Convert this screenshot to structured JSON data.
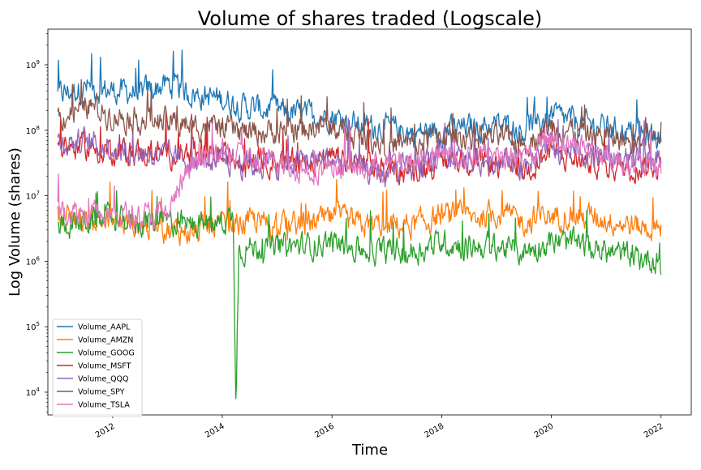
{
  "chart_data": {
    "type": "line",
    "title": "Volume of shares traded (Logscale)",
    "xlabel": "Time",
    "ylabel": "Log Volume (shares)",
    "yscale": "log",
    "xlim": [
      2010.82,
      2022.55
    ],
    "ylim": [
      4500,
      3500000000
    ],
    "x_ticks": [
      2012,
      2014,
      2016,
      2018,
      2020,
      2022
    ],
    "y_ticks": [
      {
        "value": 10000,
        "base": "10",
        "exp": "4"
      },
      {
        "value": 100000,
        "base": "10",
        "exp": "5"
      },
      {
        "value": 1000000,
        "base": "10",
        "exp": "6"
      },
      {
        "value": 10000000,
        "base": "10",
        "exp": "7"
      },
      {
        "value": 100000000,
        "base": "10",
        "exp": "8"
      },
      {
        "value": 1000000000,
        "base": "10",
        "exp": "9"
      }
    ],
    "legend_position": "lower-left",
    "grid": false,
    "series": [
      {
        "name": "Volume_AAPL",
        "color": "#1f77b4",
        "x": [
          2011.0,
          2011.5,
          2012.0,
          2012.5,
          2013.0,
          2013.5,
          2014.0,
          2014.5,
          2015.0,
          2015.5,
          2016.0,
          2016.5,
          2017.0,
          2017.5,
          2018.0,
          2018.5,
          2019.0,
          2019.5,
          2020.0,
          2020.5,
          2021.0,
          2021.5,
          2022.0
        ],
        "y": [
          350000000,
          450000000,
          400000000,
          380000000,
          500000000,
          350000000,
          300000000,
          220000000,
          200000000,
          170000000,
          170000000,
          120000000,
          110000000,
          90000000,
          100000000,
          110000000,
          120000000,
          100000000,
          170000000,
          130000000,
          110000000,
          90000000,
          80000000
        ]
      },
      {
        "name": "Volume_AMZN",
        "color": "#ff7f0e",
        "x": [
          2011.0,
          2011.5,
          2012.0,
          2012.5,
          2013.0,
          2013.5,
          2014.0,
          2014.5,
          2015.0,
          2015.5,
          2016.0,
          2016.5,
          2017.0,
          2017.5,
          2018.0,
          2018.5,
          2019.0,
          2019.5,
          2020.0,
          2020.5,
          2021.0,
          2021.5,
          2022.0
        ],
        "y": [
          5000000,
          4500000,
          4000000,
          3500000,
          3000000,
          2800000,
          3500000,
          4000000,
          3500000,
          3500000,
          4500000,
          3500000,
          3500000,
          3500000,
          5000000,
          4500000,
          5500000,
          4000000,
          5000000,
          5000000,
          4500000,
          3500000,
          3000000
        ]
      },
      {
        "name": "Volume_GOOG",
        "color": "#2ca02c",
        "x": [
          2011.0,
          2011.5,
          2012.0,
          2012.5,
          2013.0,
          2013.5,
          2014.0,
          2014.2,
          2014.25,
          2014.3,
          2014.5,
          2015.0,
          2015.5,
          2016.0,
          2016.5,
          2017.0,
          2017.5,
          2018.0,
          2018.5,
          2019.0,
          2019.5,
          2020.0,
          2020.5,
          2021.0,
          2021.5,
          2022.0
        ],
        "y": [
          3500000,
          4000000,
          4500000,
          4000000,
          4000000,
          3500000,
          4000000,
          5000000,
          8000,
          1500000,
          1600000,
          1700000,
          1700000,
          2000000,
          1500000,
          1400000,
          1400000,
          2000000,
          1700000,
          1700000,
          1400000,
          2000000,
          1800000,
          1400000,
          1200000,
          1000000
        ]
      },
      {
        "name": "Volume_MSFT",
        "color": "#d62728",
        "x": [
          2011.0,
          2011.5,
          2012.0,
          2012.5,
          2013.0,
          2013.5,
          2014.0,
          2014.5,
          2015.0,
          2015.5,
          2016.0,
          2016.5,
          2017.0,
          2017.5,
          2018.0,
          2018.5,
          2019.0,
          2019.5,
          2020.0,
          2020.5,
          2021.0,
          2021.5,
          2022.0
        ],
        "y": [
          60000000,
          55000000,
          50000000,
          45000000,
          45000000,
          45000000,
          40000000,
          35000000,
          35000000,
          35000000,
          35000000,
          30000000,
          25000000,
          25000000,
          35000000,
          35000000,
          30000000,
          25000000,
          45000000,
          35000000,
          30000000,
          27000000,
          30000000
        ]
      },
      {
        "name": "Volume_QQQ",
        "color": "#9467bd",
        "x": [
          2011.0,
          2011.5,
          2012.0,
          2012.5,
          2013.0,
          2013.5,
          2014.0,
          2014.5,
          2015.0,
          2015.5,
          2016.0,
          2016.5,
          2017.0,
          2017.5,
          2018.0,
          2018.5,
          2019.0,
          2019.5,
          2020.0,
          2020.5,
          2021.0,
          2021.5,
          2022.0
        ],
        "y": [
          70000000,
          65000000,
          55000000,
          45000000,
          40000000,
          35000000,
          35000000,
          30000000,
          30000000,
          35000000,
          35000000,
          25000000,
          22000000,
          25000000,
          35000000,
          35000000,
          35000000,
          30000000,
          50000000,
          45000000,
          40000000,
          35000000,
          40000000
        ]
      },
      {
        "name": "Volume_SPY",
        "color": "#8c564b",
        "x": [
          2011.0,
          2011.5,
          2012.0,
          2012.5,
          2013.0,
          2013.5,
          2014.0,
          2014.5,
          2015.0,
          2015.5,
          2016.0,
          2016.5,
          2017.0,
          2017.5,
          2018.0,
          2018.5,
          2019.0,
          2019.5,
          2020.0,
          2020.5,
          2021.0,
          2021.5,
          2022.0
        ],
        "y": [
          150000000,
          250000000,
          170000000,
          150000000,
          130000000,
          120000000,
          110000000,
          90000000,
          100000000,
          110000000,
          110000000,
          80000000,
          65000000,
          60000000,
          90000000,
          80000000,
          80000000,
          60000000,
          120000000,
          90000000,
          80000000,
          65000000,
          75000000
        ]
      },
      {
        "name": "Volume_TSLA",
        "color": "#e377c2",
        "x": [
          2011.0,
          2011.5,
          2012.0,
          2012.5,
          2013.0,
          2013.25,
          2013.5,
          2014.0,
          2014.5,
          2015.0,
          2015.5,
          2016.0,
          2016.5,
          2017.0,
          2017.5,
          2018.0,
          2018.5,
          2019.0,
          2019.5,
          2020.0,
          2020.5,
          2021.0,
          2021.5,
          2022.0
        ],
        "y": [
          6000000,
          5500000,
          5000000,
          5000000,
          5000000,
          15000000,
          30000000,
          45000000,
          35000000,
          30000000,
          25000000,
          30000000,
          25000000,
          30000000,
          35000000,
          40000000,
          40000000,
          45000000,
          35000000,
          80000000,
          60000000,
          40000000,
          30000000,
          25000000
        ]
      }
    ]
  }
}
